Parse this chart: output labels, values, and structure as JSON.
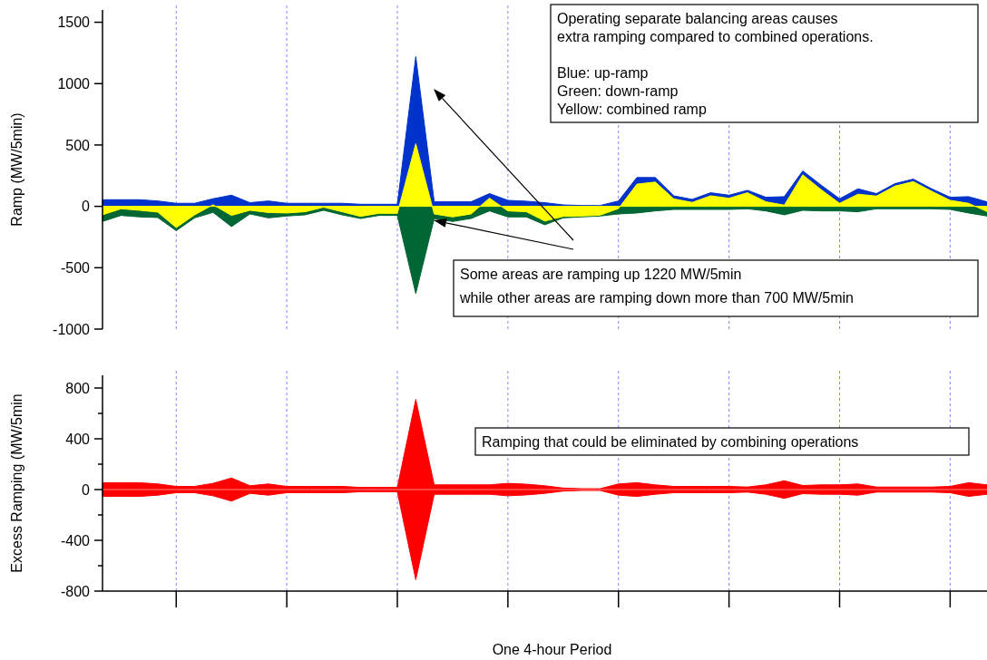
{
  "chart_data": [
    {
      "type": "area",
      "ylabel": "Ramp (MW/5min)",
      "categories": [
        null,
        null,
        null,
        null,
        null,
        null,
        null,
        null,
        null,
        null,
        null,
        null,
        null,
        null,
        null,
        null,
        null,
        null,
        null,
        null,
        null,
        null,
        null,
        null,
        null,
        null,
        null,
        null,
        null,
        null,
        null,
        null,
        null,
        null,
        null,
        null,
        null,
        null,
        null,
        null,
        null,
        null,
        null,
        null,
        null,
        null,
        null,
        null,
        null
      ],
      "ylim": [
        -1000,
        1600
      ],
      "yticks": [
        -1000,
        -500,
        0,
        500,
        1000,
        1500
      ],
      "grid": "x",
      "series": [
        {
          "color": "#0033cc",
          "values": [
            54,
            54,
            54,
            44,
            25,
            25,
            62,
            91,
            30,
            44,
            25,
            25,
            25,
            25,
            17,
            17,
            17,
            1220,
            37,
            37,
            37,
            104,
            49,
            42,
            30,
            12,
            7,
            7,
            44,
            235,
            235,
            86,
            57,
            111,
            91,
            131,
            74,
            79,
            289,
            173,
            62,
            143,
            104,
            185,
            222,
            143,
            74,
            79,
            37
          ]
        },
        {
          "color": "#006633",
          "values": [
            -123,
            -74,
            -86,
            -91,
            -198,
            -94,
            -49,
            -165,
            -62,
            -94,
            -79,
            -69,
            -32,
            -69,
            -99,
            -74,
            -74,
            -710,
            -99,
            -123,
            -99,
            -37,
            -86,
            -86,
            -150,
            -94,
            -86,
            -79,
            -62,
            -54,
            -37,
            -25,
            -25,
            -25,
            -25,
            -20,
            -37,
            -69,
            -32,
            -37,
            -37,
            -44,
            -20,
            -20,
            -20,
            -20,
            -25,
            -54,
            -79
          ]
        },
        {
          "color": "#ffff00",
          "values": [
            -69,
            -20,
            -32,
            -47,
            -173,
            -69,
            13,
            -74,
            -32,
            -50,
            -54,
            -44,
            -7,
            -44,
            -82,
            -57,
            -57,
            510,
            -62,
            -86,
            -62,
            67,
            -37,
            -44,
            -120,
            -82,
            -79,
            -72,
            -18,
            181,
            198,
            61,
            32,
            86,
            66,
            111,
            37,
            10,
            257,
            136,
            25,
            99,
            84,
            165,
            202,
            123,
            49,
            25,
            -42
          ]
        }
      ],
      "annotations": [
        "Operating separate balancing areas causes\nextra ramping compared to combined operations.\n\nBlue: up-ramp\nGreen: down-ramp\nYellow: combined ramp",
        "Some areas are ramping up 1220 MW/5min\nwhile other areas are ramping down more than 700 MW/5min"
      ]
    },
    {
      "type": "line",
      "ylabel": "Excess Ramping  (MW/5min",
      "xlabel": "One 4-hour Period",
      "categories": [
        null,
        null,
        null,
        null,
        null,
        null,
        null,
        null,
        null,
        null,
        null,
        null,
        null,
        null,
        null,
        null,
        null,
        null,
        null,
        null,
        null,
        null,
        null,
        null,
        null,
        null,
        null,
        null,
        null,
        null,
        null,
        null,
        null,
        null,
        null,
        null,
        null,
        null,
        null,
        null,
        null,
        null,
        null,
        null,
        null,
        null,
        null,
        null,
        null
      ],
      "ylim": [
        -800,
        900
      ],
      "yticks": [
        -800,
        {
          "value": -600,
          "label": null
        },
        -400,
        {
          "value": -200,
          "label": null
        },
        0,
        {
          "value": 200,
          "label": null
        },
        400,
        {
          "value": 600,
          "label": null
        },
        800
      ],
      "grid": "x",
      "series": [
        {
          "color": "#ff8080",
          "values": [
            0,
            0,
            0,
            0,
            0,
            0,
            0,
            0,
            0,
            0,
            0,
            0,
            0,
            0,
            0,
            0,
            0,
            0,
            0,
            0,
            0,
            0,
            0,
            0,
            0,
            0,
            0,
            0,
            0,
            0,
            0,
            0,
            0,
            0,
            0,
            0,
            0,
            0,
            0,
            0,
            0,
            0,
            0,
            0,
            0,
            0,
            0,
            0,
            0
          ],
          "upper": [
            54,
            54,
            54,
            44,
            25,
            25,
            49,
            91,
            30,
            44,
            25,
            25,
            25,
            25,
            17,
            17,
            17,
            710,
            37,
            37,
            37,
            37,
            49,
            42,
            30,
            12,
            7,
            7,
            44,
            54,
            37,
            25,
            25,
            25,
            25,
            20,
            37,
            69,
            32,
            37,
            37,
            44,
            20,
            20,
            20,
            20,
            25,
            54,
            37
          ],
          "lower": [
            -54,
            -54,
            -54,
            -44,
            -25,
            -25,
            -49,
            -91,
            -30,
            -44,
            -25,
            -25,
            -25,
            -25,
            -17,
            -17,
            -17,
            -710,
            -37,
            -37,
            -37,
            -37,
            -49,
            -42,
            -30,
            -12,
            -7,
            -7,
            -44,
            -54,
            -37,
            -25,
            -25,
            -25,
            -25,
            -20,
            -37,
            -69,
            -32,
            -37,
            -37,
            -44,
            -20,
            -20,
            -20,
            -20,
            -25,
            -54,
            -37
          ]
        }
      ],
      "annotations": [
        "Ramping that could be eliminated by combining operations"
      ]
    }
  ]
}
